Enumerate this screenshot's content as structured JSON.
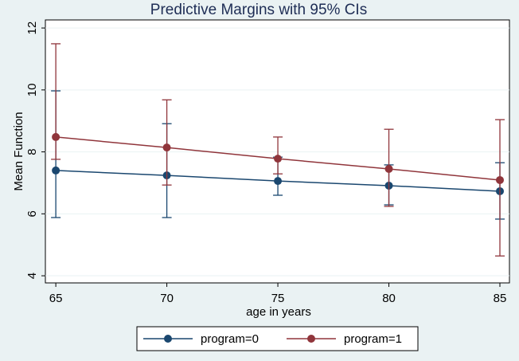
{
  "chart_data": {
    "type": "line",
    "title": "Predictive Margins with 95% CIs",
    "x_label": "age in years",
    "y_label": "Mean Function",
    "x": [
      65,
      70,
      75,
      80,
      85
    ],
    "xlim": [
      64.53,
      85.43
    ],
    "xticks": [
      65,
      70,
      75,
      80,
      85
    ],
    "ylim": [
      3.77,
      12.26
    ],
    "yticks": [
      4,
      6,
      8,
      10,
      12
    ],
    "grid": true,
    "legend_position": "bottom",
    "series": [
      {
        "name": "program=0",
        "color": "#1a476f",
        "values": [
          7.4,
          7.24,
          7.06,
          6.91,
          6.73
        ],
        "lower": [
          5.88,
          5.88,
          6.6,
          6.29,
          5.83
        ],
        "upper": [
          9.97,
          8.91,
          7.83,
          7.58,
          7.65
        ]
      },
      {
        "name": "program=1",
        "color": "#90353b",
        "values": [
          8.48,
          8.14,
          7.78,
          7.45,
          7.09
        ],
        "lower": [
          7.76,
          6.93,
          7.29,
          6.24,
          4.64
        ],
        "upper": [
          11.49,
          9.68,
          8.48,
          8.73,
          9.04
        ]
      }
    ]
  }
}
